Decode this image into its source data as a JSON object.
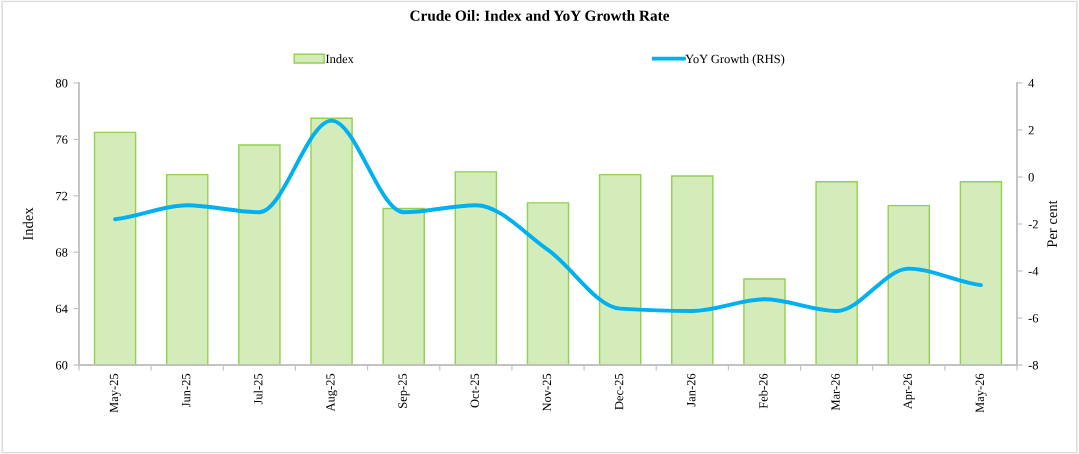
{
  "chart_data": {
    "type": "bar",
    "title": "Crude Oil: Index and YoY Growth Rate",
    "categories": [
      "May-25",
      "Jun-25",
      "Jul-25",
      "Aug-25",
      "Sep-25",
      "Oct-25",
      "Nov-25",
      "Dec-25",
      "Jan-26",
      "Feb-26",
      "Mar-26",
      "Apr-26",
      "May-26"
    ],
    "series": [
      {
        "name": "Index",
        "color": "#92d050",
        "values": [
          76.5,
          73.5,
          75.6,
          77.5,
          71.1,
          73.7,
          71.5,
          73.5,
          73.4,
          66.1,
          73.0,
          71.3,
          73.0
        ]
      },
      {
        "name": "YoY Growth (RHS)",
        "type": "line",
        "axis": "y2",
        "color": "#00b0f0",
        "values": [
          -1.8,
          -1.2,
          -1.5,
          2.4,
          -1.5,
          -1.2,
          -3.1,
          -5.6,
          -5.7,
          -5.2,
          -5.7,
          -3.9,
          -4.6
        ]
      }
    ],
    "ylabel": "Index",
    "y2label": "Per cent",
    "ylim": [
      60,
      80
    ],
    "yticks": [
      60,
      64,
      68,
      72,
      76,
      80
    ],
    "y2lim": [
      -8,
      4
    ],
    "y2ticks": [
      -8,
      -6,
      -4,
      -2,
      0,
      2,
      4
    ],
    "legend": "top",
    "grid": false
  }
}
